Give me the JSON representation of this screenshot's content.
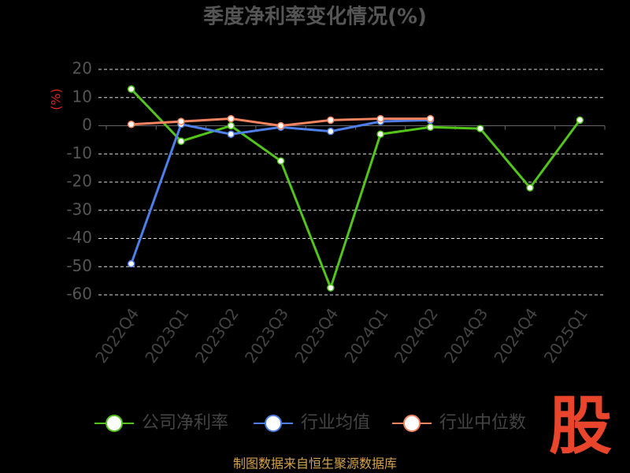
{
  "chart_data": {
    "type": "line",
    "title": "季度净利率变化情况(%)",
    "y_label": "(%)",
    "categories": [
      "2022Q4",
      "2023Q1",
      "2023Q2",
      "2023Q3",
      "2023Q4",
      "2024Q1",
      "2024Q2",
      "2024Q3",
      "2024Q4",
      "2025Q1"
    ],
    "series": [
      {
        "name": "公司净利率",
        "color": "#52c41a",
        "values": [
          13,
          -5.5,
          0,
          -12.5,
          -57.5,
          -3,
          -0.5,
          -1,
          -22,
          2
        ]
      },
      {
        "name": "行业均值",
        "color": "#4e7ee8",
        "values": [
          -49,
          0.5,
          -3,
          -0.5,
          -2,
          1.5,
          2,
          null,
          null,
          null
        ]
      },
      {
        "name": "行业中位数",
        "color": "#f4845f",
        "values": [
          0.5,
          1.5,
          2.5,
          0,
          2,
          2.5,
          2.5,
          null,
          null,
          null
        ]
      }
    ],
    "ylim": [
      -60,
      20
    ],
    "yticks": [
      -60,
      -50,
      -40,
      -30,
      -20,
      -10,
      0,
      10,
      20
    ],
    "grid": true,
    "source": "制图数据来自恒生聚源数据库",
    "logo": "股"
  }
}
